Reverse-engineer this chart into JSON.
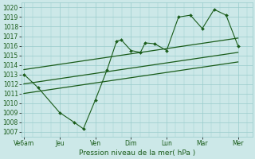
{
  "xlabel": "Pression niveau de la mer( hPa )",
  "bg_color": "#cce8e8",
  "grid_color": "#99cccc",
  "line_color": "#1a5c1a",
  "ylim": [
    1006.5,
    1020.5
  ],
  "yticks": [
    1007,
    1008,
    1009,
    1010,
    1011,
    1012,
    1013,
    1014,
    1015,
    1016,
    1017,
    1018,
    1019,
    1020
  ],
  "xtick_labels": [
    "Ve6am",
    "Jeu",
    "Ven",
    "Dim",
    "Lun",
    "Mar",
    "Mer"
  ],
  "xtick_positions": [
    0,
    1.5,
    3.0,
    4.5,
    6.0,
    7.5,
    9.0
  ],
  "xlim": [
    -0.1,
    9.6
  ],
  "series1_x": [
    0,
    0.6,
    1.5,
    2.1,
    2.5,
    3.0,
    3.5,
    3.9,
    4.1,
    4.5,
    4.9,
    5.1,
    5.5,
    6.0,
    6.5,
    7.0,
    7.5,
    8.0,
    8.5,
    9.0
  ],
  "series1_y": [
    1013.0,
    1011.6,
    1009.0,
    1008.0,
    1007.3,
    1010.3,
    1013.5,
    1016.5,
    1016.6,
    1015.5,
    1015.3,
    1016.3,
    1016.2,
    1015.5,
    1019.0,
    1019.2,
    1017.8,
    1019.8,
    1019.2,
    1016.0
  ],
  "trend1_x": [
    0,
    9.0
  ],
  "trend1_y": [
    1013.5,
    1016.8
  ],
  "trend2_x": [
    0,
    9.0
  ],
  "trend2_y": [
    1012.0,
    1015.3
  ],
  "trend3_x": [
    0,
    9.0
  ],
  "trend3_y": [
    1011.0,
    1014.3
  ]
}
